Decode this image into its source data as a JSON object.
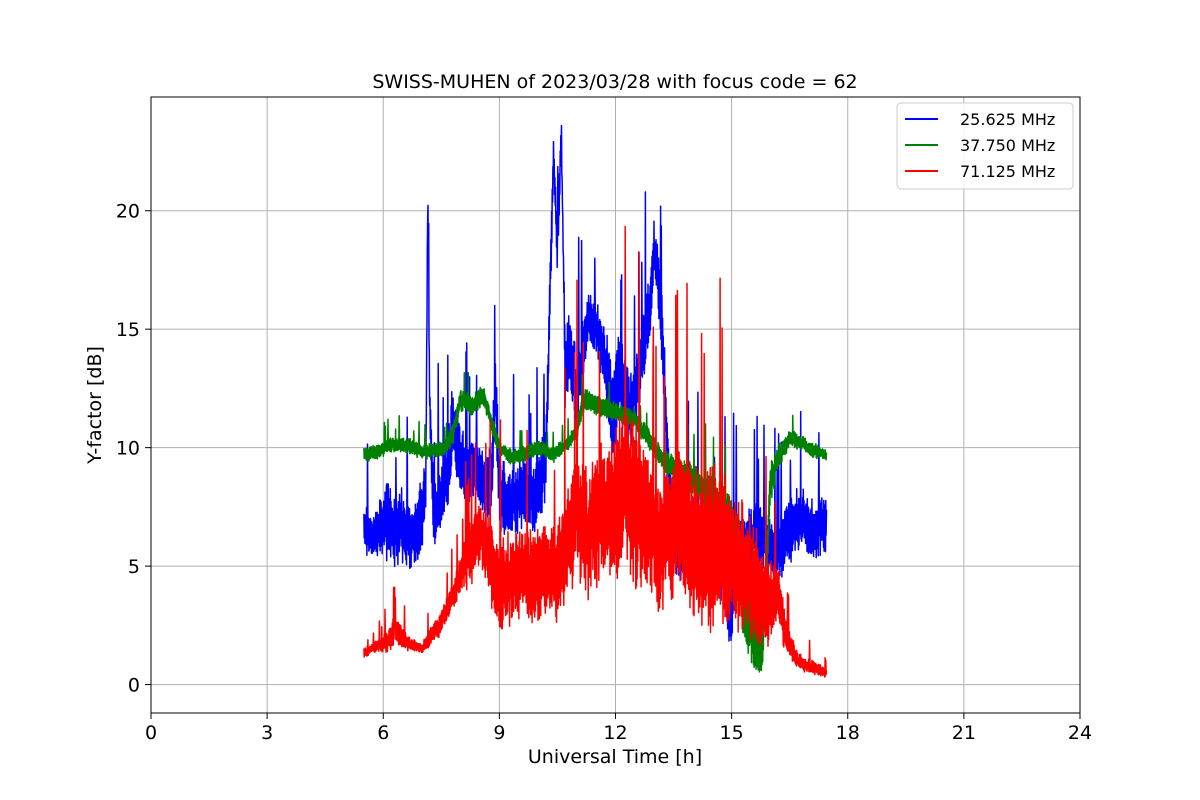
{
  "chart_data": {
    "type": "line",
    "title": "SWISS-MUHEN of 2023/03/28 with focus code = 62",
    "xlabel": "Universal Time [h]",
    "ylabel": "Y-factor [dB]",
    "xlim": [
      0,
      24
    ],
    "ylim": [
      -1.2,
      24.8
    ],
    "xticks": [
      0,
      3,
      6,
      9,
      12,
      15,
      18,
      21,
      24
    ],
    "yticks": [
      0,
      5,
      10,
      15,
      20
    ],
    "grid": true,
    "legend_position": "top-right",
    "series": [
      {
        "name": "25.625 MHz",
        "color": "#0000ff",
        "x": [
          5.5,
          5.8,
          6.1,
          6.3,
          6.5,
          6.7,
          7.0,
          7.1,
          7.15,
          7.2,
          7.3,
          7.5,
          7.7,
          7.8,
          8.0,
          8.2,
          8.4,
          8.6,
          8.8,
          8.9,
          9.0,
          9.3,
          9.6,
          9.9,
          10.2,
          10.4,
          10.5,
          10.6,
          10.7,
          10.8,
          11.0,
          11.3,
          11.5,
          11.7,
          11.9,
          12.1,
          12.4,
          12.7,
          12.9,
          13.0,
          13.1,
          13.2,
          13.4,
          13.6,
          13.9,
          14.2,
          14.5,
          14.8,
          14.95,
          15.1,
          15.3,
          15.6,
          15.9,
          16.2,
          16.5,
          16.8,
          17.1,
          17.45
        ],
        "y": [
          6.5,
          6.3,
          7.0,
          6.4,
          6.8,
          6.2,
          6.9,
          8.5,
          20.8,
          12.0,
          7.0,
          8.0,
          9.5,
          11.0,
          9.5,
          8.8,
          9.2,
          8.3,
          8.7,
          12.5,
          8.0,
          7.5,
          8.2,
          7.6,
          9.5,
          22.5,
          18.0,
          23.5,
          13.0,
          14.0,
          12.5,
          15.5,
          15.0,
          14.0,
          11.5,
          13.0,
          11.5,
          14.0,
          16.0,
          18.5,
          17.0,
          15.0,
          7.5,
          6.0,
          6.5,
          5.5,
          6.0,
          5.0,
          2.5,
          6.0,
          5.5,
          6.5,
          6.0,
          5.5,
          6.5,
          7.0,
          6.5,
          6.8
        ],
        "noise": [
          0.9,
          0.9,
          1.5,
          1.4,
          1.5,
          1.3,
          1.6,
          1.0,
          0.5,
          1.0,
          1.4,
          1.5,
          1.5,
          1.6,
          1.4,
          1.3,
          1.2,
          1.2,
          1.3,
          1.4,
          1.5,
          1.4,
          1.3,
          1.4,
          1.5,
          0.8,
          1.0,
          0.6,
          1.5,
          1.5,
          1.5,
          1.0,
          1.1,
          1.4,
          1.8,
          1.8,
          1.6,
          1.5,
          1.5,
          1.0,
          1.2,
          1.5,
          1.8,
          1.8,
          1.6,
          1.6,
          1.6,
          1.6,
          2.0,
          1.5,
          1.4,
          1.2,
          1.2,
          1.3,
          1.3,
          1.2,
          1.2,
          1.2
        ]
      },
      {
        "name": "37.750 MHz",
        "color": "#008000",
        "x": [
          5.5,
          5.8,
          6.2,
          6.6,
          7.0,
          7.4,
          7.6,
          7.8,
          8.0,
          8.3,
          8.6,
          8.8,
          9.0,
          9.3,
          9.6,
          10.0,
          10.4,
          10.8,
          11.0,
          11.2,
          11.5,
          12.0,
          12.5,
          12.9,
          13.2,
          13.5,
          13.8,
          14.1,
          14.4,
          14.7,
          15.0,
          15.2,
          15.4,
          15.6,
          15.8,
          16.0,
          16.2,
          16.5,
          16.8,
          17.1,
          17.45
        ],
        "y": [
          9.7,
          9.8,
          10.1,
          10.1,
          9.8,
          9.9,
          10.0,
          10.6,
          12.0,
          11.8,
          12.2,
          11.0,
          10.0,
          9.6,
          9.7,
          10.0,
          9.7,
          10.2,
          10.8,
          12.0,
          11.8,
          11.5,
          11.2,
          10.3,
          9.5,
          9.2,
          8.8,
          8.5,
          8.0,
          7.5,
          6.5,
          5.0,
          3.0,
          2.0,
          1.5,
          8.5,
          9.6,
          10.4,
          10.2,
          9.9,
          9.7
        ],
        "noise": [
          0.3,
          0.3,
          0.3,
          0.3,
          0.3,
          0.3,
          0.3,
          0.4,
          0.4,
          0.4,
          0.4,
          0.4,
          0.3,
          0.3,
          0.3,
          0.3,
          0.3,
          0.3,
          0.4,
          0.5,
          0.4,
          0.4,
          0.4,
          0.4,
          0.4,
          0.5,
          0.6,
          0.7,
          0.8,
          1.0,
          1.5,
          2.0,
          2.0,
          1.5,
          1.0,
          0.8,
          0.5,
          0.3,
          0.3,
          0.3,
          0.2
        ]
      },
      {
        "name": "71.125 MHz",
        "color": "#ff0000",
        "x": [
          5.5,
          5.8,
          6.1,
          6.3,
          6.6,
          7.0,
          7.3,
          7.5,
          7.8,
          8.0,
          8.2,
          8.5,
          8.8,
          9.0,
          9.3,
          9.6,
          9.9,
          10.2,
          10.5,
          10.7,
          11.0,
          11.3,
          11.6,
          11.9,
          12.2,
          12.5,
          12.8,
          13.1,
          13.4,
          13.7,
          14.0,
          14.3,
          14.6,
          14.9,
          15.2,
          15.5,
          15.8,
          16.0,
          16.2,
          16.4,
          16.7,
          17.0,
          17.45
        ],
        "y": [
          1.3,
          1.6,
          1.8,
          2.3,
          1.8,
          1.5,
          2.2,
          2.6,
          3.8,
          4.5,
          5.5,
          6.5,
          5.0,
          4.0,
          4.5,
          5.0,
          4.5,
          5.0,
          4.5,
          6.0,
          7.0,
          6.5,
          7.0,
          7.5,
          8.0,
          7.5,
          7.0,
          6.0,
          6.5,
          7.0,
          6.0,
          5.5,
          6.0,
          5.5,
          5.0,
          4.5,
          3.5,
          3.5,
          4.0,
          2.0,
          1.0,
          0.8,
          0.5
        ],
        "noise": [
          0.2,
          0.2,
          0.4,
          0.6,
          0.3,
          0.2,
          0.4,
          0.5,
          0.5,
          0.8,
          1.3,
          1.4,
          1.6,
          1.8,
          1.8,
          1.8,
          1.8,
          2.0,
          2.0,
          2.2,
          2.5,
          2.6,
          2.8,
          3.0,
          3.2,
          3.2,
          3.0,
          2.6,
          2.8,
          3.0,
          3.0,
          3.0,
          3.0,
          3.0,
          2.8,
          2.5,
          2.0,
          1.6,
          1.2,
          0.8,
          0.3,
          0.3,
          0.2
        ]
      }
    ]
  }
}
